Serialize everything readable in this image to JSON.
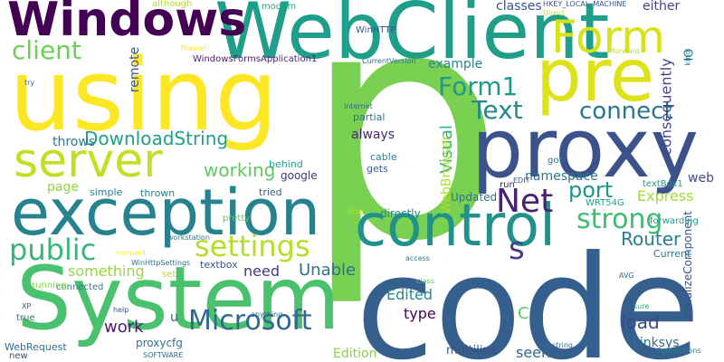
{
  "word_cloud": {
    "background": "#ffffff",
    "words": [
      {
        "text": "p",
        "color": "#7ad151",
        "vertical": false
      },
      {
        "text": "code",
        "color": "#355f8d",
        "vertical": false
      },
      {
        "text": "System",
        "color": "#4ac16d",
        "vertical": false
      },
      {
        "text": "using",
        "color": "#fde725",
        "vertical": false
      },
      {
        "text": "WebClient",
        "color": "#1f9e89",
        "vertical": false
      },
      {
        "text": "proxy",
        "color": "#3b528b",
        "vertical": false
      },
      {
        "text": "exception",
        "color": "#26828e",
        "vertical": false
      },
      {
        "text": "control",
        "color": "#21918c",
        "vertical": false
      },
      {
        "text": "pre",
        "color": "#dde318",
        "vertical": false
      },
      {
        "text": "Windows",
        "color": "#440154",
        "vertical": false
      },
      {
        "text": "server",
        "color": "#c2df23",
        "vertical": false
      },
      {
        "text": "Form",
        "color": "#d8e219",
        "vertical": false
      },
      {
        "text": "settings",
        "color": "#b5de2b",
        "vertical": false
      },
      {
        "text": "Microsoft",
        "color": "#31688e",
        "vertical": false
      },
      {
        "text": "public",
        "color": "#35b779",
        "vertical": false
      },
      {
        "text": "client",
        "color": "#6ece58",
        "vertical": false
      },
      {
        "text": "Text",
        "color": "#23898e",
        "vertical": false
      },
      {
        "text": "connect",
        "color": "#2a788e",
        "vertical": false
      },
      {
        "text": "strong",
        "color": "#3dbc74",
        "vertical": false
      },
      {
        "text": "Net",
        "color": "#482173",
        "vertical": false
      },
      {
        "text": "Form1",
        "color": "#1f998a",
        "vertical": false
      },
      {
        "text": "DownloadString",
        "color": "#1fa187",
        "vertical": false
      },
      {
        "text": "Router",
        "color": "#287d8e",
        "vertical": false
      },
      {
        "text": "s",
        "color": "#433e85",
        "vertical": false
      },
      {
        "text": "port",
        "color": "#1f958b",
        "vertical": false
      },
      {
        "text": "working",
        "color": "#5ec962",
        "vertical": false
      },
      {
        "text": "Express",
        "color": "#a0da39",
        "vertical": false
      },
      {
        "text": "Unable",
        "color": "#2c728e",
        "vertical": false
      },
      {
        "text": "Visual",
        "color": "#2db27d",
        "vertical": true
      },
      {
        "text": "WebBrowser",
        "color": "#addc30",
        "vertical": true
      },
      {
        "text": "remote",
        "color": "#38588c",
        "vertical": true
      },
      {
        "text": "consequently",
        "color": "#3f4788",
        "vertical": true
      },
      {
        "text": "Edited",
        "color": "#228c8d",
        "vertical": false
      },
      {
        "text": "type",
        "color": "#450559",
        "vertical": false
      },
      {
        "text": "load",
        "color": "#3e4989",
        "vertical": false
      },
      {
        "text": "Linksys",
        "color": "#2e6f8e",
        "vertical": false
      },
      {
        "text": "something",
        "color": "#95d840",
        "vertical": false
      },
      {
        "text": "need",
        "color": "#453781",
        "vertical": false
      },
      {
        "text": "Edition",
        "color": "#84d44b",
        "vertical": false
      },
      {
        "text": "seem",
        "color": "#33638d",
        "vertical": false
      },
      {
        "text": "work",
        "color": "#481a6c",
        "vertical": false
      },
      {
        "text": "C",
        "color": "#5ec962",
        "vertical": false
      },
      {
        "text": "u",
        "color": "#31688e",
        "vertical": false
      },
      {
        "text": "classes",
        "color": "#39568c",
        "vertical": false
      },
      {
        "text": "either",
        "color": "#414487",
        "vertical": false
      },
      {
        "text": "IO",
        "color": "#2c728e",
        "vertical": true
      },
      {
        "text": "web",
        "color": "#3e4c8a",
        "vertical": false
      },
      {
        "text": "example",
        "color": "#25858e",
        "vertical": false
      },
      {
        "text": "throws",
        "color": "#2a788e",
        "vertical": false
      },
      {
        "text": "always",
        "color": "#482677",
        "vertical": false
      },
      {
        "text": "namespace",
        "color": "#2a788e",
        "vertical": false
      },
      {
        "text": "page",
        "color": "#8fd744",
        "vertical": false
      },
      {
        "text": "InitializeComponent",
        "color": "#3b528b",
        "vertical": true
      },
      {
        "text": "multiline",
        "color": "#3b528b",
        "vertical": false
      },
      {
        "text": "Updated",
        "color": "#2d708e",
        "vertical": false
      },
      {
        "text": "directly",
        "color": "#24868e",
        "vertical": false
      },
      {
        "text": "google",
        "color": "#46337e",
        "vertical": false
      },
      {
        "text": "behind",
        "color": "#1f9e89",
        "vertical": false
      },
      {
        "text": "tried",
        "color": "#365c8d",
        "vertical": false
      },
      {
        "text": "thrown",
        "color": "#25838e",
        "vertical": false
      },
      {
        "text": "simple",
        "color": "#277f8e",
        "vertical": false
      },
      {
        "text": "pretty",
        "color": "#5ec962",
        "vertical": false
      },
      {
        "text": "WebRequest",
        "color": "#2e6e8e",
        "vertical": false
      },
      {
        "text": "proxycfg",
        "color": "#2c728e",
        "vertical": false
      },
      {
        "text": "textbox",
        "color": "#3b528b",
        "vertical": false
      },
      {
        "text": "connected",
        "color": "#277f8e",
        "vertical": false
      },
      {
        "text": "set",
        "color": "#b8de29",
        "vertical": false
      },
      {
        "text": "running",
        "color": "#8bd646",
        "vertical": false
      },
      {
        "text": "true",
        "color": "#2d708e",
        "vertical": false
      },
      {
        "text": "new",
        "color": "#3e4a89",
        "vertical": false
      },
      {
        "text": "partial",
        "color": "#2e6e8e",
        "vertical": false
      },
      {
        "text": "cable",
        "color": "#26818e",
        "vertical": false
      },
      {
        "text": "gets",
        "color": "#365d8d",
        "vertical": false
      },
      {
        "text": "WinHTTP",
        "color": "#3b528b",
        "vertical": false
      },
      {
        "text": "modem",
        "color": "#20a386",
        "vertical": false
      },
      {
        "text": "although",
        "color": "#b0dd2f",
        "vertical": false
      },
      {
        "text": "WindowsFormsApplication1",
        "color": "#481f70",
        "vertical": false
      },
      {
        "text": "HKEY_LOCAL_MACHINE",
        "color": "#3b528b",
        "vertical": false
      },
      {
        "text": "CurrentVersion",
        "color": "#2c728e",
        "vertical": false
      },
      {
        "text": "Internet",
        "color": "#31688e",
        "vertical": false
      },
      {
        "text": "Direct",
        "color": "#c8e020",
        "vertical": false
      },
      {
        "text": "forward",
        "color": "#b8de29",
        "vertical": false
      },
      {
        "text": "kind",
        "color": "#26828e",
        "vertical": true
      },
      {
        "text": "firewall",
        "color": "#fde725",
        "vertical": false
      },
      {
        "text": "try",
        "color": "#2e6e8e",
        "vertical": false
      },
      {
        "text": "textBox1",
        "color": "#1f9e89",
        "vertical": false
      },
      {
        "text": "WRT54G",
        "color": "#1fa187",
        "vertical": false
      },
      {
        "text": "forwarding",
        "color": "#1f9a8a",
        "vertical": false
      },
      {
        "text": "AVG",
        "color": "#2c728e",
        "vertical": false
      },
      {
        "text": "Current",
        "color": "#277f8e",
        "vertical": false
      },
      {
        "text": "EDIT",
        "color": "#3b528b",
        "vertical": false
      },
      {
        "text": "run",
        "color": "#48186a",
        "vertical": false
      },
      {
        "text": "got",
        "color": "#2a788e",
        "vertical": false
      },
      {
        "text": "line",
        "color": "#b5de2b",
        "vertical": false
      },
      {
        "text": "string",
        "color": "#2c728e",
        "vertical": false
      },
      {
        "text": "sure",
        "color": "#20a486",
        "vertical": false
      },
      {
        "text": "Connections",
        "color": "#25848e",
        "vertical": false
      },
      {
        "text": "SOFTWARE",
        "color": "#2e6e8e",
        "vertical": false
      },
      {
        "text": "WinHttpSettings",
        "color": "#2c728e",
        "vertical": false
      },
      {
        "text": "workstation",
        "color": "#29798e",
        "vertical": false
      },
      {
        "text": "moment",
        "color": "#fde725",
        "vertical": false
      },
      {
        "text": "access",
        "color": "#2c728e",
        "vertical": false
      },
      {
        "text": "XP",
        "color": "#3b528b",
        "vertical": false
      },
      {
        "text": "help",
        "color": "#3b528b",
        "vertical": false
      },
      {
        "text": "anything",
        "color": "#2c728e",
        "vertical": false
      },
      {
        "text": "class",
        "color": "#5ec962",
        "vertical": false
      }
    ]
  }
}
